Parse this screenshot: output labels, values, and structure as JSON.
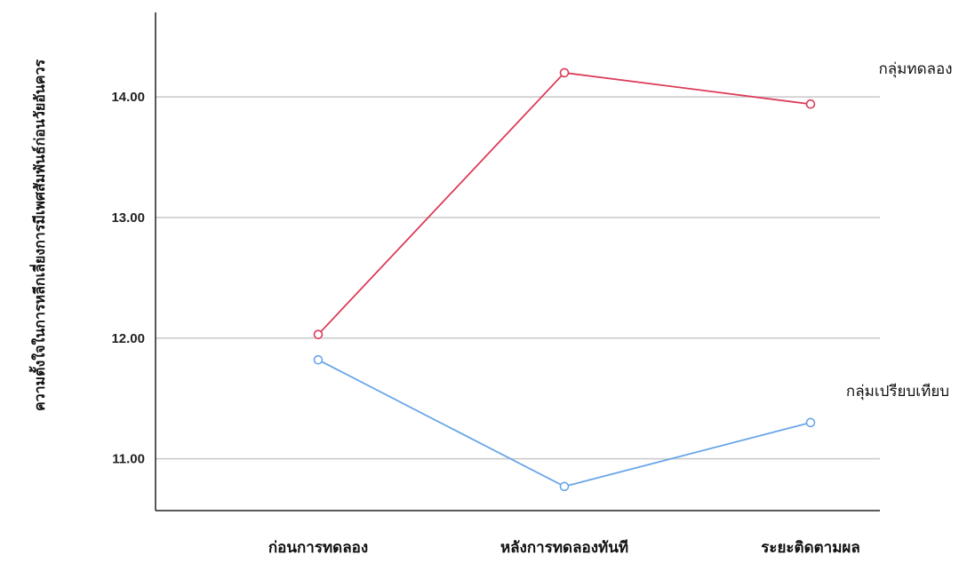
{
  "chart_data": {
    "type": "line",
    "categories": [
      "ก่อนการทดลอง",
      "หลังการทดลองทันที",
      "ระยะติดตามผล"
    ],
    "series": [
      {
        "name": "กลุ่มทดลอง",
        "values": [
          12.03,
          14.2,
          13.94
        ],
        "color": "#dc3c5a"
      },
      {
        "name": "กลุ่มเปรียบเทียบ",
        "values": [
          11.82,
          10.77,
          11.3
        ],
        "color": "#6aa6e8"
      }
    ],
    "xlabel": "",
    "ylabel": "ความตั้งใจในการหลีกเลี่ยงการมีเพศสัมพันธ์ก่อนวัยอันควร",
    "ylim": [
      10.57,
      14.7
    ],
    "yticks": [
      "11.00",
      "12.00",
      "13.00",
      "14.00"
    ],
    "grid": true,
    "legend": "end-of-line labels"
  }
}
